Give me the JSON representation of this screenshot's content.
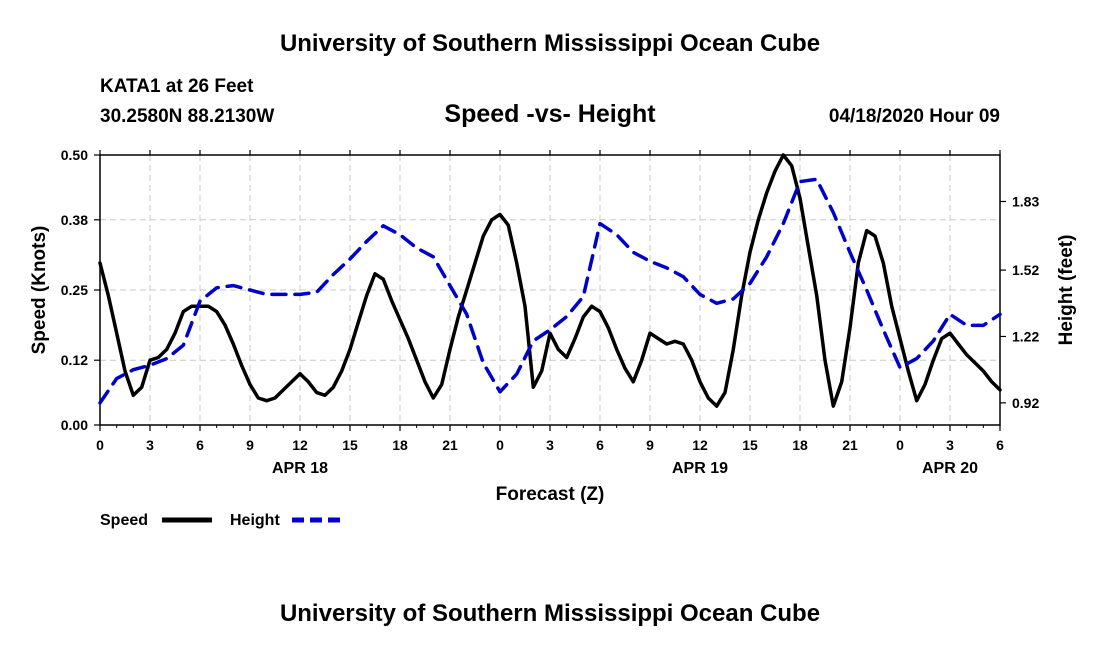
{
  "header": {
    "title": "University of Southern Mississippi Ocean Cube"
  },
  "footer": {
    "title": "University of Southern Mississippi Ocean Cube"
  },
  "station": {
    "name": "KATA1 at 26 Feet",
    "coords": "30.2580N 88.2130W"
  },
  "timestamp": "04/18/2020 Hour 09",
  "chart_data": {
    "type": "line",
    "title": "Speed -vs- Height",
    "xlabel": "Forecast (Z)",
    "ylabel": "Speed (Knots)",
    "y2label": "Height (feet)",
    "x_range": [
      0,
      54
    ],
    "ylim": [
      0,
      0.5
    ],
    "y2lim": [
      0.82,
      2.04
    ],
    "xticks": [
      0,
      3,
      6,
      9,
      12,
      15,
      18,
      21,
      24,
      27,
      30,
      33,
      36,
      39,
      42,
      45,
      48,
      51,
      54
    ],
    "xtick_labels": [
      "0",
      "3",
      "6",
      "9",
      "12",
      "15",
      "18",
      "21",
      "0",
      "3",
      "6",
      "9",
      "12",
      "15",
      "18",
      "21",
      "0",
      "3",
      "6"
    ],
    "date_labels": [
      {
        "x": 12,
        "label": "APR 18"
      },
      {
        "x": 36,
        "label": "APR 19"
      },
      {
        "x": 51,
        "label": "APR 20"
      }
    ],
    "yticks": [
      0.0,
      0.12,
      0.25,
      0.38,
      0.5
    ],
    "ytick_labels": [
      "0.00",
      "0.12",
      "0.25",
      "0.38",
      "0.50"
    ],
    "y2ticks": [
      0.92,
      1.22,
      1.52,
      1.83
    ],
    "y2tick_labels": [
      "0.92",
      "1.22",
      "1.52",
      "1.83"
    ],
    "grid": true,
    "legend": {
      "placement": "bottom-left",
      "speed_label": "Speed",
      "height_label": "Height"
    },
    "series": [
      {
        "name": "Speed",
        "axis": "left",
        "color": "#000000",
        "dash": "solid",
        "x": [
          0,
          0.5,
          1,
          1.5,
          2,
          2.5,
          3,
          3.5,
          4,
          4.5,
          5,
          5.5,
          6,
          6.5,
          7,
          7.5,
          8,
          8.5,
          9,
          9.5,
          10,
          10.5,
          11,
          11.5,
          12,
          12.5,
          13,
          13.5,
          14,
          14.5,
          15,
          15.5,
          16,
          16.5,
          17,
          17.5,
          18,
          18.5,
          19,
          19.5,
          20,
          20.5,
          21,
          21.5,
          22,
          22.5,
          23,
          23.5,
          24,
          24.5,
          25,
          25.5,
          26,
          26.5,
          27,
          27.5,
          28,
          28.5,
          29,
          29.5,
          30,
          30.5,
          31,
          31.5,
          32,
          32.5,
          33,
          33.5,
          34,
          34.5,
          35,
          35.5,
          36,
          36.5,
          37,
          37.5,
          38,
          38.5,
          39,
          39.5,
          40,
          40.5,
          41,
          41.5,
          42,
          42.5,
          43,
          43.5,
          44,
          44.5,
          45,
          45.5,
          46,
          46.5,
          47,
          47.5,
          48,
          48.5,
          49,
          49.5,
          50,
          50.5,
          51,
          51.5,
          52,
          52.5,
          53,
          53.5,
          54
        ],
        "values": [
          0.3,
          0.24,
          0.17,
          0.1,
          0.055,
          0.07,
          0.12,
          0.125,
          0.14,
          0.17,
          0.21,
          0.22,
          0.22,
          0.22,
          0.21,
          0.185,
          0.15,
          0.11,
          0.075,
          0.05,
          0.045,
          0.05,
          0.065,
          0.08,
          0.095,
          0.08,
          0.06,
          0.055,
          0.07,
          0.1,
          0.14,
          0.19,
          0.24,
          0.28,
          0.27,
          0.23,
          0.195,
          0.16,
          0.12,
          0.08,
          0.05,
          0.075,
          0.14,
          0.2,
          0.25,
          0.3,
          0.35,
          0.38,
          0.39,
          0.37,
          0.3,
          0.22,
          0.07,
          0.1,
          0.17,
          0.14,
          0.125,
          0.16,
          0.2,
          0.22,
          0.21,
          0.18,
          0.14,
          0.105,
          0.08,
          0.12,
          0.17,
          0.16,
          0.15,
          0.155,
          0.15,
          0.12,
          0.08,
          0.05,
          0.035,
          0.06,
          0.14,
          0.24,
          0.32,
          0.38,
          0.43,
          0.47,
          0.5,
          0.48,
          0.42,
          0.33,
          0.24,
          0.12,
          0.035,
          0.08,
          0.18,
          0.3,
          0.36,
          0.35,
          0.3,
          0.22,
          0.16,
          0.1,
          0.045,
          0.075,
          0.12,
          0.16,
          0.17,
          0.15,
          0.13,
          0.115,
          0.1,
          0.08,
          0.065
        ]
      },
      {
        "name": "Height",
        "axis": "right",
        "color": "#0000cc",
        "dash": "dashed",
        "x": [
          0,
          1,
          2,
          3,
          4,
          5,
          6,
          7,
          8,
          9,
          10,
          11,
          12,
          13,
          14,
          15,
          16,
          17,
          18,
          19,
          20,
          21,
          22,
          23,
          24,
          25,
          26,
          27,
          28,
          29,
          30,
          31,
          32,
          33,
          34,
          35,
          36,
          37,
          38,
          39,
          40,
          41,
          42,
          43,
          44,
          45,
          46,
          47,
          48,
          49,
          50,
          51,
          52,
          53,
          54
        ],
        "values": [
          0.92,
          1.03,
          1.07,
          1.09,
          1.12,
          1.18,
          1.38,
          1.44,
          1.45,
          1.43,
          1.41,
          1.41,
          1.41,
          1.42,
          1.5,
          1.57,
          1.65,
          1.72,
          1.68,
          1.62,
          1.58,
          1.45,
          1.32,
          1.1,
          0.97,
          1.05,
          1.2,
          1.25,
          1.31,
          1.4,
          1.73,
          1.68,
          1.6,
          1.56,
          1.53,
          1.49,
          1.41,
          1.37,
          1.39,
          1.46,
          1.58,
          1.73,
          1.92,
          1.93,
          1.78,
          1.6,
          1.43,
          1.25,
          1.08,
          1.12,
          1.2,
          1.32,
          1.27,
          1.27,
          1.32
        ]
      }
    ]
  }
}
